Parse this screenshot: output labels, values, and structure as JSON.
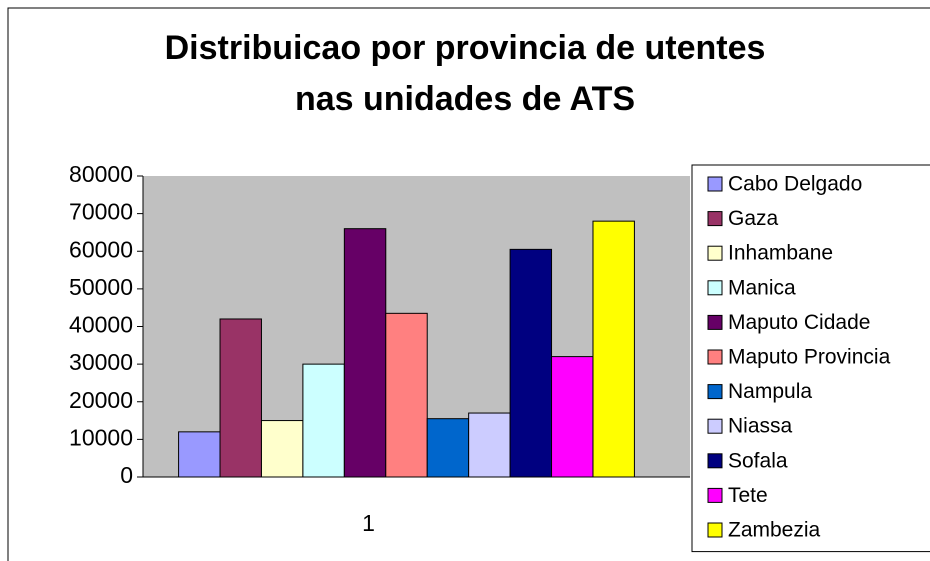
{
  "chart_data": {
    "type": "bar",
    "title": [
      "Distribuicao por provincia de utentes",
      "nas unidades de ATS"
    ],
    "categories": [
      "1"
    ],
    "series": [
      {
        "name": "Cabo Delgado",
        "color": "#9999ff",
        "values": [
          12000
        ]
      },
      {
        "name": "Gaza",
        "color": "#993366",
        "values": [
          42000
        ]
      },
      {
        "name": "Inhambane",
        "color": "#ffffcc",
        "values": [
          15000
        ]
      },
      {
        "name": "Manica",
        "color": "#ccffff",
        "values": [
          30000
        ]
      },
      {
        "name": "Maputo Cidade",
        "color": "#660066",
        "values": [
          66000
        ]
      },
      {
        "name": "Maputo Provincia",
        "color": "#ff8080",
        "values": [
          43500
        ]
      },
      {
        "name": "Nampula",
        "color": "#0066cc",
        "values": [
          15500
        ]
      },
      {
        "name": "Niassa",
        "color": "#ccccff",
        "values": [
          17000
        ]
      },
      {
        "name": "Sofala",
        "color": "#000080",
        "values": [
          60500
        ]
      },
      {
        "name": "Tete",
        "color": "#ff00ff",
        "values": [
          32000
        ]
      },
      {
        "name": "Zambezia",
        "color": "#ffff00",
        "values": [
          68000
        ]
      }
    ],
    "ylim": [
      0,
      80000
    ],
    "yticks": [
      0,
      10000,
      20000,
      30000,
      40000,
      50000,
      60000,
      70000,
      80000
    ],
    "grid": false,
    "legend": "right"
  }
}
